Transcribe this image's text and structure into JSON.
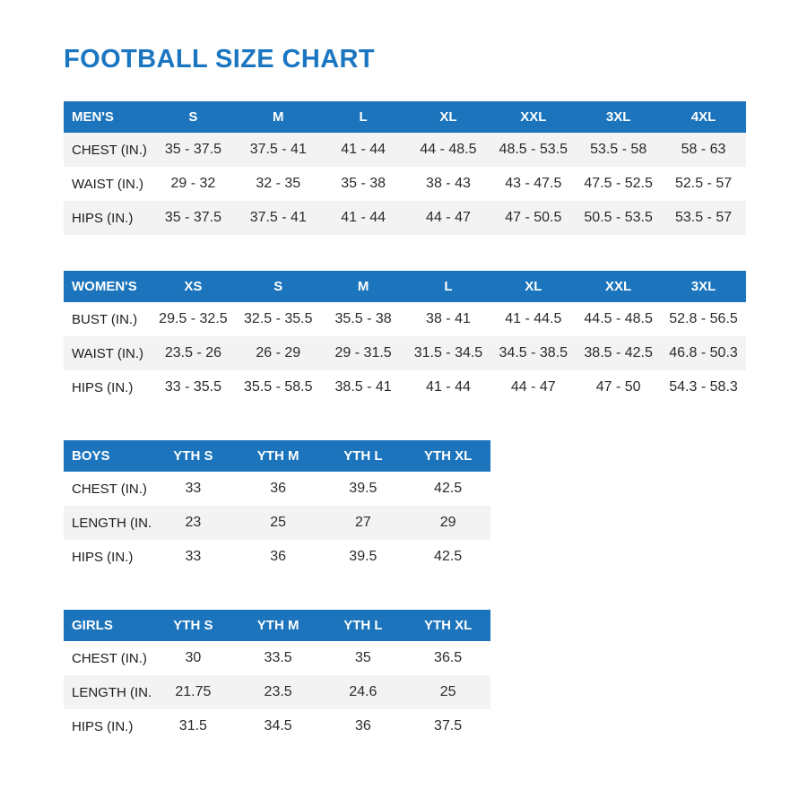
{
  "page": {
    "title": "FOOTBALL SIZE CHART"
  },
  "colors": {
    "accent_blue": "#1b74bc",
    "title_blue": "#1b76c1",
    "stripe_gray": "#f3f3f4",
    "text_dark": "#2b2b2b"
  },
  "tables": [
    {
      "id": "mens",
      "stripe": "odd",
      "header": {
        "label": "MEN'S",
        "sizes": [
          "S",
          "M",
          "L",
          "XL",
          "XXL",
          "3XL",
          "4XL"
        ]
      },
      "rows": [
        {
          "label": "CHEST (IN.)",
          "values": [
            "35 - 37.5",
            "37.5 - 41",
            "41 - 44",
            "44 - 48.5",
            "48.5 - 53.5",
            "53.5 - 58",
            "58 - 63"
          ]
        },
        {
          "label": "WAIST (IN.)",
          "values": [
            "29 - 32",
            "32 - 35",
            "35 - 38",
            "38 - 43",
            "43 - 47.5",
            "47.5 - 52.5",
            "52.5 - 57"
          ]
        },
        {
          "label": "HIPS (IN.)",
          "values": [
            "35 - 37.5",
            "37.5 - 41",
            "41 - 44",
            "44 - 47",
            "47 - 50.5",
            "50.5 - 53.5",
            "53.5 - 57"
          ]
        }
      ]
    },
    {
      "id": "womens",
      "stripe": "even",
      "header": {
        "label": "WOMEN'S",
        "sizes": [
          "XS",
          "S",
          "M",
          "L",
          "XL",
          "XXL",
          "3XL"
        ]
      },
      "rows": [
        {
          "label": "BUST (IN.)",
          "values": [
            "29.5 - 32.5",
            "32.5 - 35.5",
            "35.5 - 38",
            "38 - 41",
            "41 - 44.5",
            "44.5 - 48.5",
            "52.8 - 56.5"
          ]
        },
        {
          "label": "WAIST (IN.)",
          "values": [
            "23.5 - 26",
            "26 - 29",
            "29 - 31.5",
            "31.5 - 34.5",
            "34.5 - 38.5",
            "38.5 - 42.5",
            "46.8 - 50.3"
          ]
        },
        {
          "label": "HIPS (IN.)",
          "values": [
            "33 - 35.5",
            "35.5 - 58.5",
            "38.5 - 41",
            "41 - 44",
            "44 - 47",
            "47 - 50",
            "54.3 - 58.3"
          ]
        }
      ]
    },
    {
      "id": "boys",
      "stripe": "even",
      "header": {
        "label": "BOYS",
        "sizes": [
          "YTH S",
          "YTH M",
          "YTH L",
          "YTH XL"
        ]
      },
      "rows": [
        {
          "label": "CHEST (IN.)",
          "values": [
            "33",
            "36",
            "39.5",
            "42.5"
          ]
        },
        {
          "label": "LENGTH (IN.)",
          "values": [
            "23",
            "25",
            "27",
            "29"
          ]
        },
        {
          "label": "HIPS (IN.)",
          "values": [
            "33",
            "36",
            "39.5",
            "42.5"
          ]
        }
      ]
    },
    {
      "id": "girls",
      "stripe": "even",
      "header": {
        "label": "GIRLS",
        "sizes": [
          "YTH S",
          "YTH M",
          "YTH L",
          "YTH XL"
        ]
      },
      "rows": [
        {
          "label": "CHEST (IN.)",
          "values": [
            "30",
            "33.5",
            "35",
            "36.5"
          ]
        },
        {
          "label": "LENGTH (IN.)",
          "values": [
            "21.75",
            "23.5",
            "24.6",
            "25"
          ]
        },
        {
          "label": "HIPS (IN.)",
          "values": [
            "31.5",
            "34.5",
            "36",
            "37.5"
          ]
        }
      ]
    }
  ]
}
